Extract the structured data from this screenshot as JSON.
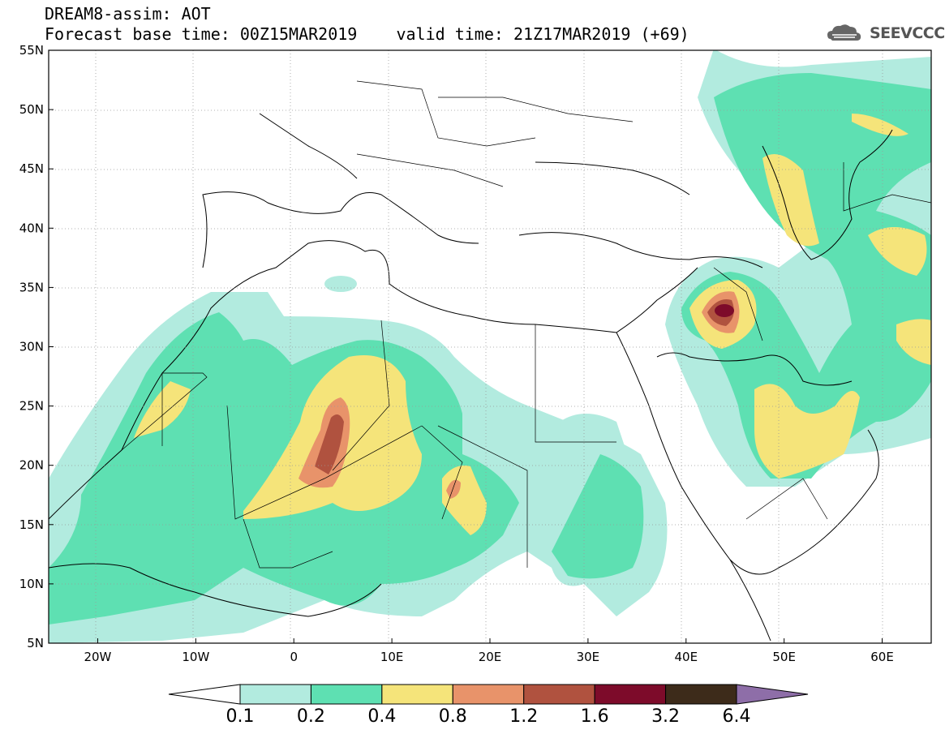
{
  "title": {
    "line1": "DREAM8-assim: AOT",
    "line2": "Forecast base time: 00Z15MAR2019    valid time: 21Z17MAR2019 (+69)"
  },
  "logo": {
    "icon": "cloud-icon",
    "text": "SEEVCCC"
  },
  "axes": {
    "lat_labels": [
      "55N",
      "50N",
      "45N",
      "40N",
      "35N",
      "30N",
      "25N",
      "20N",
      "15N",
      "10N",
      "5N"
    ],
    "lat_values": [
      55,
      50,
      45,
      40,
      35,
      30,
      25,
      20,
      15,
      10,
      5
    ],
    "lon_labels": [
      "20W",
      "10W",
      "0",
      "10E",
      "20E",
      "30E",
      "40E",
      "50E",
      "60E"
    ],
    "lon_values": [
      -20,
      -10,
      0,
      10,
      20,
      30,
      40,
      50,
      60
    ],
    "lon_range": [
      -25,
      65
    ],
    "lat_range": [
      5,
      55
    ]
  },
  "colorbar": {
    "levels": [
      "0.1",
      "0.2",
      "0.4",
      "0.8",
      "1.2",
      "1.6",
      "3.2",
      "6.4"
    ],
    "colors": [
      "#ffffff",
      "#b2ebdf",
      "#5ee0b2",
      "#f5e47a",
      "#e8936a",
      "#b0523f",
      "#7d0b2a",
      "#3d2b1a",
      "#8e6ea8"
    ]
  },
  "shading_colors": {
    "level1": "#b2ebdf",
    "level2": "#5ee0b2",
    "level3": "#f5e47a",
    "level4": "#e8936a",
    "level5": "#b0523f",
    "level6": "#7d0b2a"
  }
}
